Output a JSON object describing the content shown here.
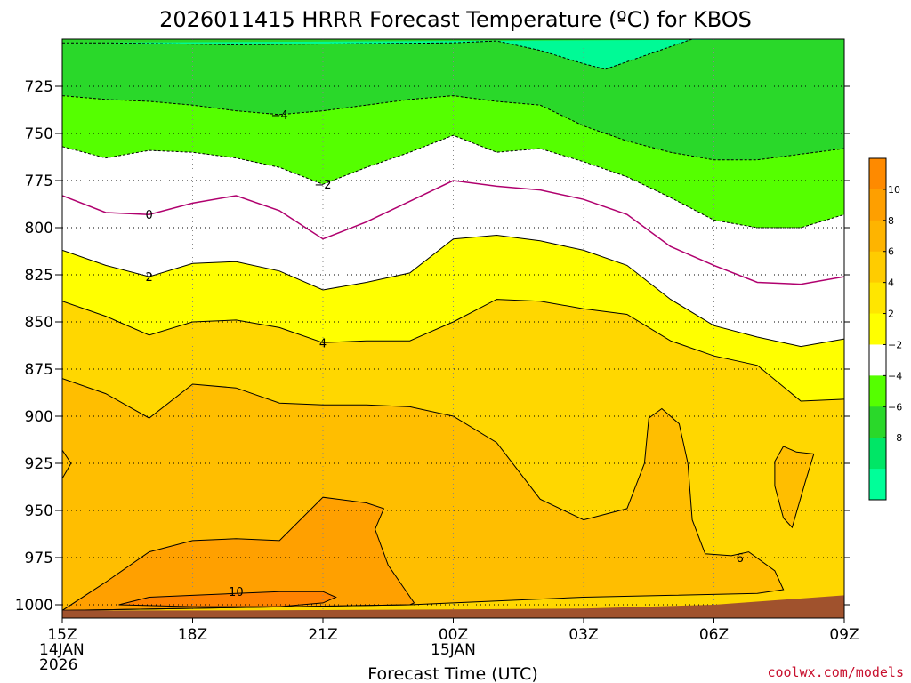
{
  "chart_data": {
    "type": "heatmap",
    "title": "2026011415 HRRR Forecast Temperature (ºC) for KBOS",
    "xlabel": "Forecast Time (UTC)",
    "ylabel": "",
    "credit": "coolwx.com/models",
    "x_ticks": [
      {
        "hour": 0,
        "lines": [
          "15Z",
          "14JAN",
          "2026"
        ]
      },
      {
        "hour": 3,
        "lines": [
          "18Z"
        ]
      },
      {
        "hour": 6,
        "lines": [
          "21Z"
        ]
      },
      {
        "hour": 9,
        "lines": [
          "00Z",
          "15JAN"
        ]
      },
      {
        "hour": 12,
        "lines": [
          "03Z"
        ]
      },
      {
        "hour": 15,
        "lines": [
          "06Z"
        ]
      },
      {
        "hour": 18,
        "lines": [
          "09Z"
        ]
      }
    ],
    "y_ticks": [
      725,
      750,
      775,
      800,
      825,
      850,
      875,
      900,
      925,
      950,
      975,
      1000
    ],
    "y_range": [
      1003,
      700
    ],
    "x_range": [
      0,
      18
    ],
    "grid": true,
    "colorbar": {
      "placement": "right",
      "labels": [
        "10",
        "8",
        "6",
        "4",
        "2",
        "−2",
        "−4",
        "−6",
        "−8"
      ],
      "colors": [
        "#fe8a00",
        "#fe9f00",
        "#feb400",
        "#ffcc00",
        "#ffe600",
        "#ffff00",
        "#ffffff",
        "#55ff00",
        "#2ad82a",
        "#00e666",
        "#00ff99"
      ]
    },
    "bands": [
      {
        "range": "<= -6",
        "color": "#00fa96"
      },
      {
        "range": "-6 to -4",
        "color": "#2ad82a"
      },
      {
        "range": "-4 to -2",
        "color": "#55ff00"
      },
      {
        "range": "-2 to 2",
        "color": "#ffffff"
      },
      {
        "range": "2 to 4",
        "color": "#ffff00"
      },
      {
        "range": "4 to 6",
        "color": "#ffd700"
      },
      {
        "range": "6 to 8",
        "color": "#ffbe00"
      },
      {
        "range": "8 to 10",
        "color": "#ffa000"
      },
      {
        "range": ">= 10",
        "color": "#ff8200"
      }
    ],
    "ground_color": "#a0522d",
    "isotherms": [
      {
        "value": -6,
        "label": "",
        "points": [
          [
            0,
            702
          ],
          [
            1,
            702
          ],
          [
            4,
            703
          ],
          [
            9,
            702
          ],
          [
            10,
            701
          ],
          [
            11,
            706
          ],
          [
            12,
            713
          ],
          [
            12.5,
            716
          ],
          [
            13,
            712
          ],
          [
            14,
            704
          ],
          [
            14.5,
            700
          ],
          [
            18,
            700
          ]
        ]
      },
      {
        "value": -4,
        "label": "−4",
        "label_at": [
          5,
          740
        ],
        "points": [
          [
            0,
            730
          ],
          [
            1,
            732
          ],
          [
            2,
            733
          ],
          [
            3,
            735
          ],
          [
            4,
            738
          ],
          [
            5,
            740
          ],
          [
            6,
            738
          ],
          [
            7,
            735
          ],
          [
            8,
            732
          ],
          [
            9,
            730
          ],
          [
            10,
            733
          ],
          [
            11,
            735
          ],
          [
            12,
            746
          ],
          [
            13,
            754
          ],
          [
            14,
            760
          ],
          [
            15,
            764
          ],
          [
            16,
            764
          ],
          [
            17,
            761
          ],
          [
            18,
            758
          ],
          [
            18,
            700
          ]
        ]
      },
      {
        "value": -2,
        "label": "−2",
        "label_at": [
          6,
          777
        ],
        "points": [
          [
            0,
            757
          ],
          [
            1,
            763
          ],
          [
            2,
            759
          ],
          [
            3,
            760
          ],
          [
            4,
            763
          ],
          [
            5,
            768
          ],
          [
            6,
            777
          ],
          [
            7,
            768
          ],
          [
            8,
            760
          ],
          [
            9,
            751
          ],
          [
            10,
            760
          ],
          [
            11,
            758
          ],
          [
            12,
            765
          ],
          [
            13,
            773
          ],
          [
            14,
            784
          ],
          [
            15,
            796
          ],
          [
            16,
            800
          ],
          [
            17,
            800
          ],
          [
            18,
            793
          ]
        ]
      },
      {
        "value": 0,
        "label": "0",
        "label_at": [
          2,
          793
        ],
        "points": [
          [
            0,
            783
          ],
          [
            1,
            792
          ],
          [
            2,
            793
          ],
          [
            3,
            787
          ],
          [
            4,
            783
          ],
          [
            5,
            791
          ],
          [
            6,
            806
          ],
          [
            7,
            797
          ],
          [
            8,
            786
          ],
          [
            9,
            775
          ],
          [
            10,
            778
          ],
          [
            11,
            780
          ],
          [
            12,
            785
          ],
          [
            13,
            793
          ],
          [
            14,
            810
          ],
          [
            15,
            820
          ],
          [
            16,
            829
          ],
          [
            17,
            830
          ],
          [
            18,
            826
          ]
        ]
      },
      {
        "value": 2,
        "label": "2",
        "label_at": [
          2,
          826
        ],
        "points": [
          [
            0,
            812
          ],
          [
            1,
            820
          ],
          [
            2,
            826
          ],
          [
            3,
            819
          ],
          [
            4,
            818
          ],
          [
            5,
            823
          ],
          [
            6,
            833
          ],
          [
            7,
            829
          ],
          [
            8,
            824
          ],
          [
            9,
            806
          ],
          [
            10,
            804
          ],
          [
            11,
            807
          ],
          [
            12,
            812
          ],
          [
            13,
            820
          ],
          [
            14,
            838
          ],
          [
            15,
            852
          ],
          [
            16,
            858
          ],
          [
            17,
            863
          ],
          [
            18,
            859
          ]
        ]
      },
      {
        "value": 4,
        "label": "4",
        "label_at": [
          6,
          861
        ],
        "points": [
          [
            0,
            839
          ],
          [
            1,
            847
          ],
          [
            2,
            857
          ],
          [
            3,
            850
          ],
          [
            4,
            849
          ],
          [
            5,
            853
          ],
          [
            6,
            861
          ],
          [
            7,
            860
          ],
          [
            8,
            860
          ],
          [
            9,
            850
          ],
          [
            10,
            838
          ],
          [
            11,
            839
          ],
          [
            12,
            843
          ],
          [
            13,
            846
          ],
          [
            14,
            860
          ],
          [
            15,
            868
          ],
          [
            16,
            873
          ],
          [
            17,
            892
          ],
          [
            18,
            891
          ]
        ]
      },
      {
        "value": 6,
        "label": "6",
        "label_at": [
          15.6,
          975
        ],
        "points": [
          [
            0,
            880
          ],
          [
            1,
            888
          ],
          [
            2,
            901
          ],
          [
            3,
            883
          ],
          [
            4,
            885
          ],
          [
            5,
            893
          ],
          [
            6,
            894
          ],
          [
            7,
            894
          ],
          [
            8,
            895
          ],
          [
            9,
            900
          ],
          [
            10,
            914
          ],
          [
            11,
            944
          ],
          [
            12,
            955
          ],
          [
            13,
            949
          ],
          [
            13.4,
            925
          ],
          [
            13.5,
            901
          ],
          [
            13.8,
            896
          ],
          [
            14.2,
            904
          ],
          [
            14.4,
            925
          ],
          [
            14.5,
            955
          ],
          [
            14.8,
            973
          ],
          [
            15.4,
            974
          ],
          [
            15.8,
            972
          ],
          [
            16.4,
            982
          ],
          [
            16.6,
            992
          ],
          [
            16,
            994
          ],
          [
            14,
            995
          ],
          [
            12,
            996
          ],
          [
            10,
            998
          ],
          [
            9,
            999
          ],
          [
            8,
            1000
          ],
          [
            0,
            1003
          ]
        ]
      },
      {
        "value": 8,
        "label": "",
        "points": [
          [
            0,
            1003
          ],
          [
            1,
            988
          ],
          [
            2,
            972
          ],
          [
            3,
            966
          ],
          [
            4,
            965
          ],
          [
            5,
            966
          ],
          [
            6,
            943
          ],
          [
            7,
            946
          ],
          [
            7.4,
            949
          ],
          [
            7.2,
            960
          ],
          [
            7.5,
            979
          ],
          [
            8.1,
            999
          ],
          [
            8,
            1000
          ],
          [
            0,
            1003
          ]
        ]
      },
      {
        "value": 10,
        "label": "10",
        "label_at": [
          4,
          993
        ],
        "points": [
          [
            1.3,
            1000
          ],
          [
            2,
            996
          ],
          [
            3,
            995
          ],
          [
            4,
            994
          ],
          [
            5,
            993
          ],
          [
            6,
            993
          ],
          [
            6.3,
            996
          ],
          [
            6,
            999
          ],
          [
            5,
            1001
          ],
          [
            3,
            1001
          ],
          [
            1.3,
            1000
          ]
        ]
      }
    ],
    "warm_pockets": [
      {
        "value": 6,
        "points": [
          [
            0,
            918
          ],
          [
            0.2,
            925
          ],
          [
            0,
            933
          ]
        ]
      },
      {
        "value": 6,
        "points": [
          [
            16.6,
            916
          ],
          [
            16.9,
            919
          ],
          [
            17.3,
            920
          ],
          [
            17.1,
            935
          ],
          [
            16.8,
            959
          ],
          [
            16.6,
            954
          ],
          [
            16.4,
            937
          ],
          [
            16.4,
            924
          ],
          [
            16.6,
            916
          ]
        ]
      }
    ],
    "ground": {
      "points": [
        [
          0,
          1003
        ],
        [
          4,
          1003
        ],
        [
          9,
          1002.5
        ],
        [
          12,
          1002
        ],
        [
          15,
          1000
        ],
        [
          18,
          995
        ]
      ]
    }
  }
}
